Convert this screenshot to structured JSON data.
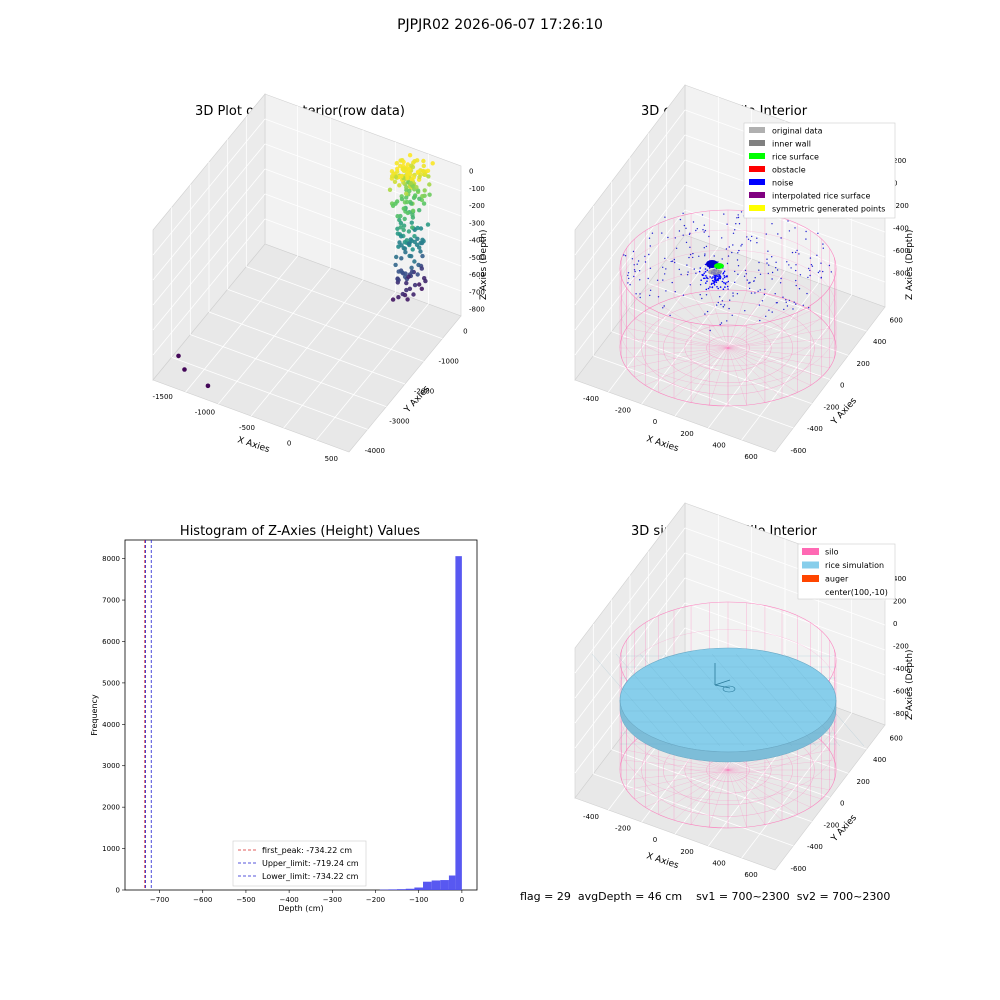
{
  "suptitle": "PJPJR02 2026-06-07 17:26:10",
  "status": {
    "flag": "flag = 29",
    "avg": "avgDepth = 46 cm",
    "sv1": "sv1 = 700~2300",
    "sv2": "sv2 = 700~2300"
  },
  "colors": {
    "pane": "#f2f2f2",
    "grid": "#d9d9d9",
    "silo": "#ff69b4",
    "rice": "#87ceeb",
    "auger": "#ff4500",
    "hist_bar": "#4f4ff0",
    "first_peak": "#d62728",
    "limits": "#1f1fd0"
  },
  "chart_data": [
    {
      "type": "scatter",
      "title": "3D Plot of Silo Interior(row data)",
      "xlabel": "X Axies",
      "ylabel": "Y Axies",
      "zlabel": "Z Axies (Depth)",
      "xticks": [
        "-1500",
        "-1000",
        "-500",
        "0",
        "500"
      ],
      "yticks": [
        "-4000",
        "-3000",
        "-2000",
        "-1000",
        "0"
      ],
      "zticks": [
        "0",
        "-100",
        "-200",
        "-300",
        "-400",
        "-500",
        "-600",
        "-700",
        "-800"
      ],
      "xlim": [
        -1700,
        600
      ],
      "ylim": [
        -4200,
        200
      ],
      "zlim": [
        -850,
        50
      ],
      "colormap": "viridis",
      "cluster": {
        "x_center": 100,
        "y_center": -100,
        "z_range": [
          -750,
          0
        ],
        "count": 220
      },
      "outliers": [
        {
          "x": -1550,
          "y": -3700,
          "z": -770
        },
        {
          "x": -1420,
          "y": -3900,
          "z": -790
        },
        {
          "x": -1100,
          "y": -4050,
          "z": -800
        }
      ]
    },
    {
      "type": "scatter",
      "title": "3D classify of Silo Interior",
      "xlabel": "X Axies",
      "ylabel": "Y Axies",
      "zlabel": "Z Axies (Depth)",
      "xticks": [
        "-400",
        "-200",
        "0",
        "200",
        "400",
        "600"
      ],
      "yticks": [
        "-600",
        "-400",
        "-200",
        "0",
        "200",
        "400",
        "600"
      ],
      "zticks": [
        "200",
        "0",
        "-200",
        "-400",
        "-600",
        "-800"
      ],
      "legend": [
        {
          "label": "original data",
          "color": "#b0b0b0"
        },
        {
          "label": "inner wall",
          "color": "#808080"
        },
        {
          "label": "rice surface",
          "color": "#00ff00"
        },
        {
          "label": "obstacle",
          "color": "#ff0000"
        },
        {
          "label": "noise",
          "color": "#0000ff"
        },
        {
          "label": "interpolated rice surface",
          "color": "#800080"
        },
        {
          "label": "symmetric generated points",
          "color": "#ffff00"
        }
      ],
      "legend_position": "upper right"
    },
    {
      "type": "bar",
      "title": "Histogram of Z-Axies (Height) Values",
      "xlabel": "Depth (cm)",
      "ylabel": "Frequency",
      "xlim": [
        -780,
        35
      ],
      "ylim": [
        0,
        8450
      ],
      "xticks": [
        -700,
        -600,
        -500,
        -400,
        -300,
        -200,
        -100,
        0
      ],
      "yticks": [
        0,
        1000,
        2000,
        3000,
        4000,
        5000,
        6000,
        7000,
        8000
      ],
      "bins": [
        {
          "x0": -190,
          "x1": -170,
          "value": 10
        },
        {
          "x0": -170,
          "x1": -150,
          "value": 15
        },
        {
          "x0": -150,
          "x1": -130,
          "value": 20
        },
        {
          "x0": -130,
          "x1": -110,
          "value": 30
        },
        {
          "x0": -110,
          "x1": -90,
          "value": 60
        },
        {
          "x0": -90,
          "x1": -70,
          "value": 200
        },
        {
          "x0": -70,
          "x1": -50,
          "value": 230
        },
        {
          "x0": -50,
          "x1": -30,
          "value": 240
        },
        {
          "x0": -30,
          "x1": -15,
          "value": 350
        },
        {
          "x0": -15,
          "x1": 0,
          "value": 8060
        }
      ],
      "lines": [
        {
          "label": "first_peak: -734.22 cm",
          "x": -734.22,
          "color": "#d62728"
        },
        {
          "label": "Upper_limit: -719.24 cm",
          "x": -719.24,
          "color": "#1f1fd0"
        },
        {
          "label": "Lower_limit: -734.22 cm",
          "x": -734.22,
          "color": "#1f1fd0"
        }
      ],
      "legend_position": "lower center"
    },
    {
      "type": "area",
      "title": "3D simulation of Silo Interior",
      "xlabel": "X Axies",
      "ylabel": "Y Axies",
      "zlabel": "Z Axies (Depth)",
      "xticks": [
        "-400",
        "-200",
        "0",
        "200",
        "400",
        "600"
      ],
      "yticks": [
        "-600",
        "-400",
        "-200",
        "0",
        "200",
        "400",
        "600"
      ],
      "zticks": [
        "400",
        "200",
        "0",
        "-200",
        "-400",
        "-600",
        "-800"
      ],
      "legend": [
        {
          "label": "silo",
          "color": "#ff69b4"
        },
        {
          "label": "rice simulation",
          "color": "#87ceeb"
        },
        {
          "label": "auger",
          "color": "#ff4500"
        },
        {
          "label": "center(100,-10)",
          "color": ""
        }
      ],
      "legend_position": "upper right"
    }
  ]
}
